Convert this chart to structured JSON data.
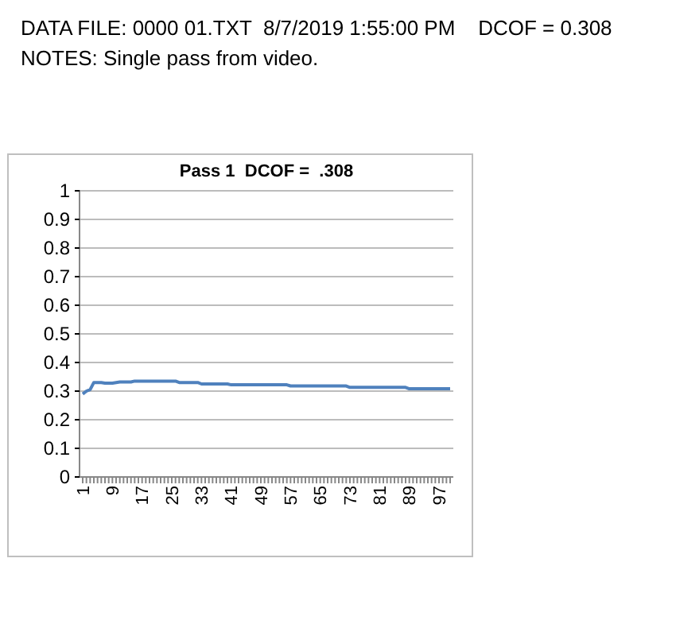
{
  "chart_data": {
    "type": "line",
    "title": "Pass 1  DCOF =  .308",
    "annotations": [
      "DATA FILE: 0000 01.TXT  8/7/2019 1:55:00 PM    DCOF = 0.308",
      "NOTES: Single pass from video."
    ],
    "categories": [
      "1",
      null,
      null,
      null,
      null,
      null,
      null,
      null,
      "9",
      null,
      null,
      null,
      null,
      null,
      null,
      null,
      "17",
      null,
      null,
      null,
      null,
      null,
      null,
      null,
      "25",
      null,
      null,
      null,
      null,
      null,
      null,
      null,
      "33",
      null,
      null,
      null,
      null,
      null,
      null,
      null,
      "41",
      null,
      null,
      null,
      null,
      null,
      null,
      null,
      "49",
      null,
      null,
      null,
      null,
      null,
      null,
      null,
      "57",
      null,
      null,
      null,
      null,
      null,
      null,
      null,
      "65",
      null,
      null,
      null,
      null,
      null,
      null,
      null,
      "73",
      null,
      null,
      null,
      null,
      null,
      null,
      null,
      "81",
      null,
      null,
      null,
      null,
      null,
      null,
      null,
      "89",
      null,
      null,
      null,
      null,
      null,
      null,
      null,
      "97",
      null,
      null,
      null
    ],
    "series": [
      {
        "color": "#4f81bd",
        "values": [
          0.29,
          0.3,
          0.305,
          0.33,
          0.33,
          0.33,
          0.328,
          0.328,
          0.328,
          0.33,
          0.332,
          0.332,
          0.332,
          0.332,
          0.335,
          0.335,
          0.335,
          0.335,
          0.335,
          0.335,
          0.335,
          0.335,
          0.335,
          0.335,
          0.335,
          0.335,
          0.33,
          0.33,
          0.33,
          0.33,
          0.33,
          0.33,
          0.325,
          0.325,
          0.325,
          0.325,
          0.325,
          0.325,
          0.325,
          0.325,
          0.322,
          0.322,
          0.322,
          0.322,
          0.322,
          0.322,
          0.322,
          0.322,
          0.322,
          0.322,
          0.322,
          0.322,
          0.322,
          0.322,
          0.322,
          0.322,
          0.318,
          0.318,
          0.318,
          0.318,
          0.318,
          0.318,
          0.318,
          0.318,
          0.318,
          0.318,
          0.318,
          0.318,
          0.318,
          0.318,
          0.318,
          0.318,
          0.313,
          0.313,
          0.313,
          0.313,
          0.313,
          0.313,
          0.313,
          0.313,
          0.313,
          0.313,
          0.313,
          0.313,
          0.313,
          0.313,
          0.313,
          0.313,
          0.308,
          0.308,
          0.308,
          0.308,
          0.308,
          0.308,
          0.308,
          0.308,
          0.308,
          0.308,
          0.308,
          0.308
        ]
      }
    ],
    "ylim": [
      0,
      1
    ],
    "yticks": [
      0,
      0.1,
      0.2,
      0.3,
      0.4,
      0.5,
      0.6,
      0.7,
      0.8,
      0.9,
      1
    ],
    "grid": "y",
    "marker": "none",
    "line_style": "solid"
  }
}
